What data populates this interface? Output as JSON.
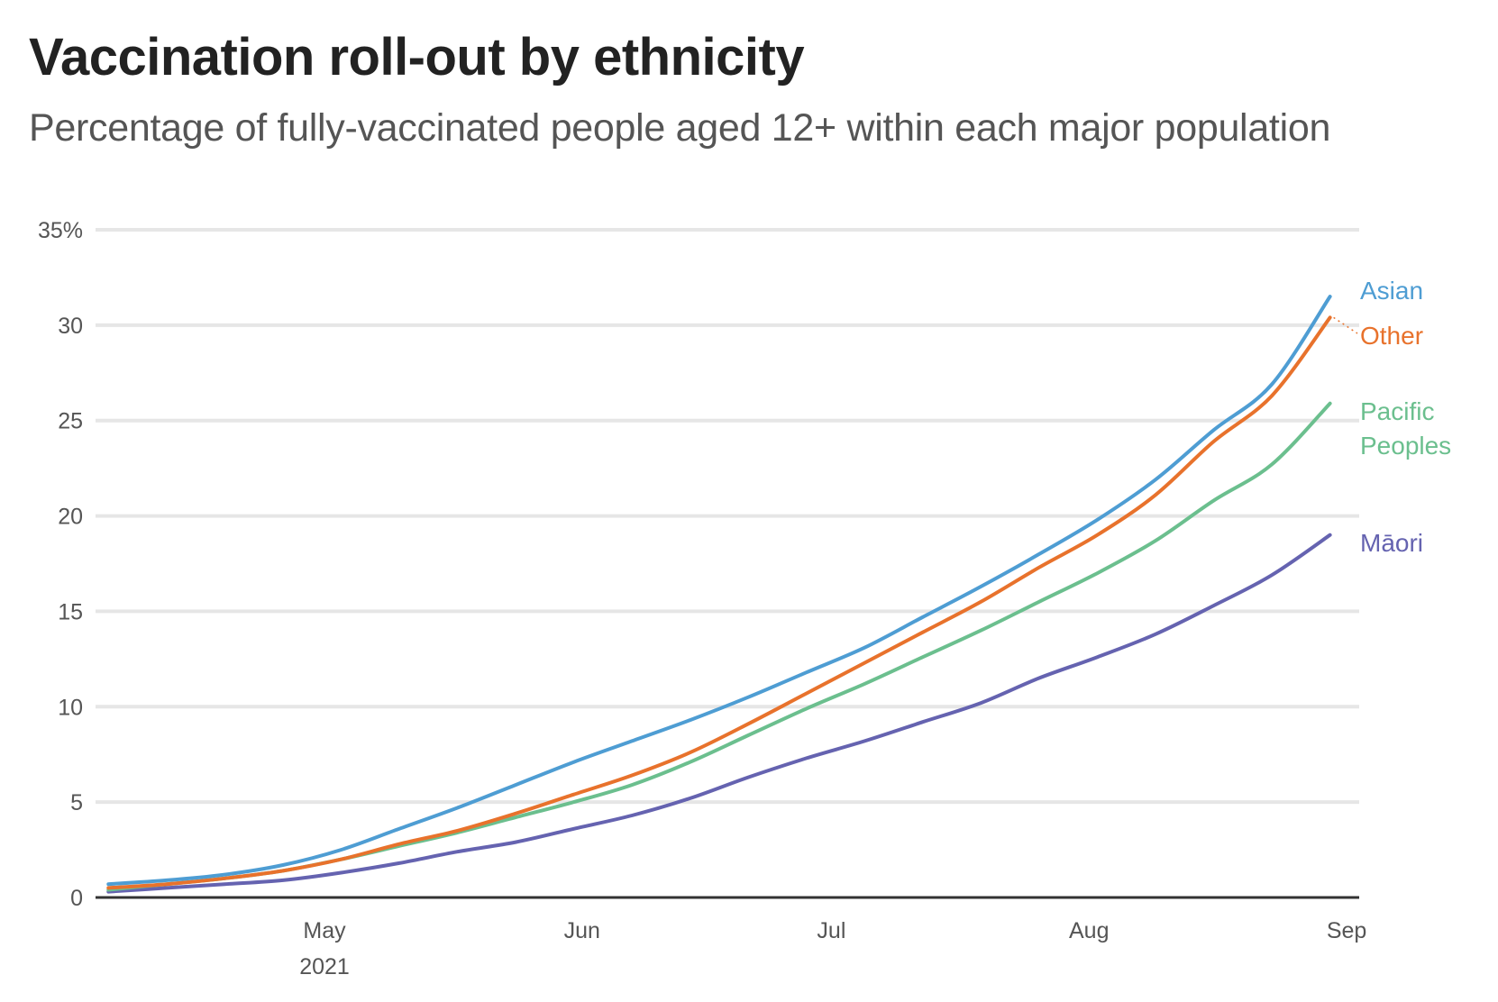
{
  "chart_data": {
    "type": "line",
    "title": "Vaccination roll-out by ethnicity",
    "subtitle": "Percentage of fully-vaccinated people aged 12+ within each major population",
    "xlabel": "",
    "ylabel": "",
    "ylim": [
      0,
      35
    ],
    "yticks": [
      0,
      5,
      10,
      15,
      20,
      25,
      30,
      35
    ],
    "ytick_labels": [
      "0",
      "5",
      "10",
      "15",
      "20",
      "25",
      "30",
      "35%"
    ],
    "xlim": [
      "2021-04-05",
      "2021-09-01"
    ],
    "xticks": [
      {
        "date": "2021-05-01",
        "label": "May",
        "sublabel": "2021"
      },
      {
        "date": "2021-06-01",
        "label": "Jun",
        "sublabel": ""
      },
      {
        "date": "2021-07-01",
        "label": "Jul",
        "sublabel": ""
      },
      {
        "date": "2021-08-01",
        "label": "Aug",
        "sublabel": ""
      },
      {
        "date": "2021-09-01",
        "label": "Sep",
        "sublabel": ""
      }
    ],
    "grid": true,
    "legend": "direct-labels-right",
    "x": [
      "2021-04-05",
      "2021-04-12",
      "2021-04-19",
      "2021-04-26",
      "2021-05-03",
      "2021-05-10",
      "2021-05-17",
      "2021-05-24",
      "2021-05-31",
      "2021-06-07",
      "2021-06-14",
      "2021-06-21",
      "2021-06-28",
      "2021-07-05",
      "2021-07-12",
      "2021-07-19",
      "2021-07-26",
      "2021-08-02",
      "2021-08-09",
      "2021-08-16",
      "2021-08-23",
      "2021-08-30"
    ],
    "series": [
      {
        "name": "Asian",
        "label_lines": [
          "Asian"
        ],
        "color": "#4e9dd3",
        "values": [
          0.7,
          0.9,
          1.2,
          1.7,
          2.5,
          3.6,
          4.7,
          5.9,
          7.1,
          8.2,
          9.3,
          10.5,
          11.8,
          13.1,
          14.7,
          16.3,
          18.0,
          19.8,
          21.9,
          24.5,
          26.9,
          31.5
        ]
      },
      {
        "name": "Other",
        "label_lines": [
          "Other"
        ],
        "color": "#e8722c",
        "values": [
          0.5,
          0.7,
          1.0,
          1.4,
          2.0,
          2.8,
          3.5,
          4.4,
          5.4,
          6.4,
          7.6,
          9.1,
          10.7,
          12.3,
          13.9,
          15.5,
          17.3,
          19.0,
          21.1,
          23.9,
          26.3,
          30.4
        ]
      },
      {
        "name": "Pacific Peoples",
        "label_lines": [
          "Pacific",
          "Peoples"
        ],
        "color": "#6bbf8e",
        "values": [
          0.4,
          0.7,
          1.0,
          1.4,
          2.0,
          2.7,
          3.4,
          4.2,
          5.0,
          5.9,
          7.1,
          8.5,
          9.9,
          11.2,
          12.6,
          14.0,
          15.5,
          17.0,
          18.7,
          20.8,
          22.7,
          25.9
        ]
      },
      {
        "name": "Māori",
        "label_lines": [
          "Māori"
        ],
        "color": "#6563b0",
        "values": [
          0.3,
          0.5,
          0.7,
          0.9,
          1.3,
          1.8,
          2.4,
          2.9,
          3.6,
          4.3,
          5.2,
          6.3,
          7.3,
          8.2,
          9.2,
          10.2,
          11.5,
          12.6,
          13.8,
          15.3,
          16.9,
          19.0
        ]
      }
    ]
  }
}
